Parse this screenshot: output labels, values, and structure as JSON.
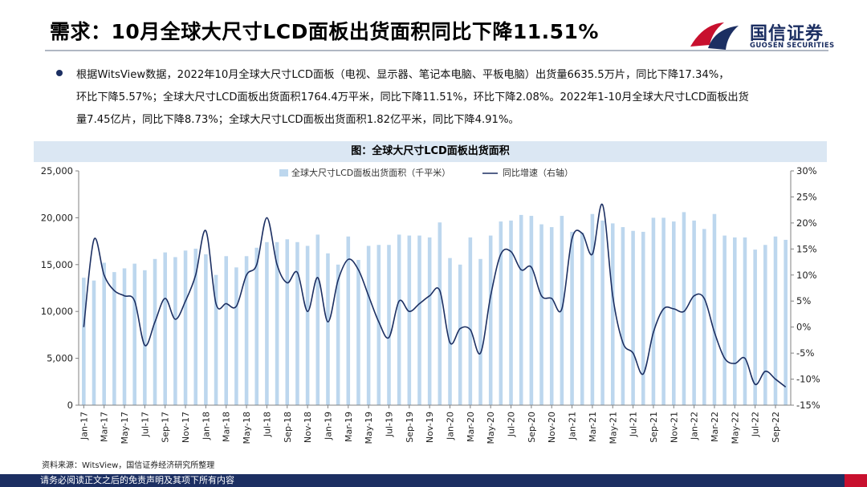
{
  "header": {
    "title": "需求：10月全球大尺寸LCD面板出货面积同比下降11.51%",
    "logo_cn": "国信证券",
    "logo_en": "GUOSEN SECURITIES",
    "logo_icon": "guosen-logo-icon",
    "brand_colors": {
      "navy": "#1c2f62",
      "red": "#c8102e"
    }
  },
  "summary": {
    "lines": [
      "根据WitsView数据，2022年10月全球大尺寸LCD面板（电视、显示器、笔记本电脑、平板电脑）出货量6635.5万片，同比下降17.34%，",
      "环比下降5.57%；全球大尺寸LCD面板出货面积1764.4万平米，同比下降11.51%，环比下降2.08%。2022年1-10月全球大尺寸LCD面板出货",
      "量7.45亿片，同比下降8.73%；全球大尺寸LCD面板出货面积1.82亿平米，同比下降4.91%。"
    ]
  },
  "chart_heading": "图：全球大尺寸LCD面板出货面积",
  "chart_data": {
    "type": "bar",
    "categories": [
      "Jan-17",
      "Feb-17",
      "Mar-17",
      "Apr-17",
      "May-17",
      "Jun-17",
      "Jul-17",
      "Aug-17",
      "Sep-17",
      "Oct-17",
      "Nov-17",
      "Dec-17",
      "Jan-18",
      "Feb-18",
      "Mar-18",
      "Apr-18",
      "May-18",
      "Jun-18",
      "Jul-18",
      "Aug-18",
      "Sep-18",
      "Oct-18",
      "Nov-18",
      "Dec-18",
      "Jan-19",
      "Feb-19",
      "Mar-19",
      "Apr-19",
      "May-19",
      "Jun-19",
      "Jul-19",
      "Aug-19",
      "Sep-19",
      "Oct-19",
      "Nov-19",
      "Dec-19",
      "Jan-20",
      "Feb-20",
      "Mar-20",
      "Apr-20",
      "May-20",
      "Jun-20",
      "Jul-20",
      "Aug-20",
      "Sep-20",
      "Oct-20",
      "Nov-20",
      "Dec-20",
      "Jan-21",
      "Feb-21",
      "Mar-21",
      "Apr-21",
      "May-21",
      "Jun-21",
      "Jul-21",
      "Aug-21",
      "Sep-21",
      "Oct-21",
      "Nov-21",
      "Dec-21",
      "Jan-22",
      "Feb-22",
      "Mar-22",
      "Apr-22",
      "May-22",
      "Jun-22",
      "Jul-22",
      "Aug-22",
      "Sep-22",
      "Oct-22"
    ],
    "x_tick_labels": [
      "Jan-17",
      "Mar-17",
      "May-17",
      "Jul-17",
      "Sep-17",
      "Nov-17",
      "Jan-18",
      "Mar-18",
      "May-18",
      "Jul-18",
      "Sep-18",
      "Nov-18",
      "Jan-19",
      "Mar-19",
      "May-19",
      "Jul-19",
      "Sep-19",
      "Nov-19",
      "Jan-20",
      "Mar-20",
      "May-20",
      "Jul-20",
      "Sep-20",
      "Nov-20",
      "Jan-21",
      "Mar-21",
      "May-21",
      "Jul-21",
      "Sep-21",
      "Nov-21",
      "Jan-22",
      "Mar-22",
      "May-22",
      "Jul-22",
      "Sep-22"
    ],
    "series": [
      {
        "name": "全球大尺寸LCD面板出货面积（千平米）",
        "type": "bar",
        "axis": "left",
        "color": "#bdd7ee",
        "values": [
          13600,
          13300,
          15200,
          14200,
          14600,
          15100,
          14400,
          15600,
          16300,
          15800,
          16500,
          16700,
          16100,
          13900,
          15900,
          14700,
          15900,
          16800,
          17400,
          17400,
          17700,
          17400,
          17000,
          18200,
          16200,
          15000,
          18000,
          15500,
          17000,
          17100,
          17100,
          18200,
          18100,
          18100,
          17900,
          19500,
          15700,
          15000,
          17900,
          15600,
          18100,
          19600,
          19700,
          20300,
          20200,
          19300,
          19000,
          20200,
          18500,
          18400,
          20400,
          19700,
          19400,
          19000,
          18600,
          18500,
          20000,
          20000,
          19600,
          20600,
          19700,
          18800,
          20400,
          18100,
          17900,
          17900,
          16600,
          17100,
          18000,
          17644
        ]
      },
      {
        "name": "同比增速（右轴）",
        "type": "line",
        "axis": "right",
        "color": "#1c2f62",
        "values": [
          0.0,
          16.8,
          10.0,
          7.0,
          6.0,
          5.0,
          -3.5,
          1.0,
          5.5,
          1.5,
          5.0,
          10.0,
          18.5,
          4.5,
          4.5,
          4.0,
          10.0,
          12.0,
          21.0,
          12.0,
          8.5,
          10.5,
          3.0,
          9.5,
          1.0,
          9.0,
          13.0,
          11.0,
          6.0,
          1.0,
          -2.0,
          5.0,
          3.0,
          4.5,
          6.0,
          7.0,
          -3.0,
          -0.3,
          -0.5,
          -5.0,
          6.0,
          14.0,
          14.5,
          11.0,
          11.5,
          6.0,
          5.5,
          3.5,
          17.0,
          18.0,
          14.0,
          23.5,
          6.0,
          -3.0,
          -5.0,
          -9.0,
          -1.0,
          3.5,
          3.5,
          3.0,
          6.0,
          5.5,
          -1.0,
          -6.0,
          -7.0,
          -6.0,
          -11.0,
          -8.5,
          -10.0,
          -11.51
        ]
      }
    ],
    "yleft": {
      "min": 0,
      "max": 25000,
      "ticks": [
        "0",
        "5,000",
        "10,000",
        "15,000",
        "20,000",
        "25,000"
      ]
    },
    "yright": {
      "min": -15,
      "max": 30,
      "ticks": [
        "-15%",
        "-10%",
        "-5%",
        "0%",
        "5%",
        "10%",
        "15%",
        "20%",
        "25%",
        "30%"
      ]
    },
    "legend_position": "top-center",
    "grid": false
  },
  "source": "资料来源：WitsView，国信证券经济研究所整理",
  "footer": "请务必阅读正文之后的免责声明及其项下所有内容"
}
